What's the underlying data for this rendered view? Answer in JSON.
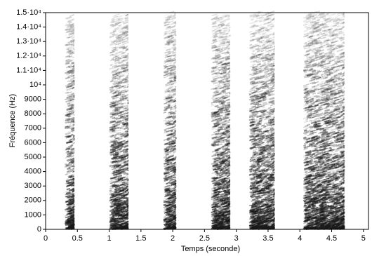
{
  "chart_data": {
    "type": "spectrogram",
    "x_label": "Temps (seconde)",
    "y_label": "Fréquence (Hz)",
    "xlim": [
      0,
      5.08
    ],
    "ylim": [
      0,
      15000
    ],
    "xticks": [
      0,
      0.5,
      1,
      1.5,
      2,
      2.5,
      3,
      3.5,
      4,
      4.5,
      5
    ],
    "yticks": [
      0,
      1000,
      2000,
      3000,
      4000,
      5000,
      6000,
      7000,
      8000,
      9000,
      {
        "value": 10000,
        "label": "10⁴"
      },
      {
        "value": 11000,
        "label": "1.1·10⁴"
      },
      {
        "value": 12000,
        "label": "1.2·10⁴"
      },
      {
        "value": 13000,
        "label": "1.3·10⁴"
      },
      {
        "value": 14000,
        "label": "1.4·10⁴"
      },
      {
        "value": 15000,
        "label": "1.5·10⁴"
      }
    ],
    "color": "#1a1a1a",
    "segments": [
      {
        "start": 0.3,
        "end": 0.45,
        "max_frequency": 14800
      },
      {
        "start": 1.0,
        "end": 1.3,
        "max_frequency": 14800
      },
      {
        "start": 1.85,
        "end": 2.05,
        "max_frequency": 15000
      },
      {
        "start": 2.6,
        "end": 2.9,
        "max_frequency": 14800
      },
      {
        "start": 3.2,
        "end": 3.6,
        "max_frequency": 15000
      },
      {
        "start": 4.05,
        "end": 4.7,
        "max_frequency": 15000
      }
    ]
  }
}
